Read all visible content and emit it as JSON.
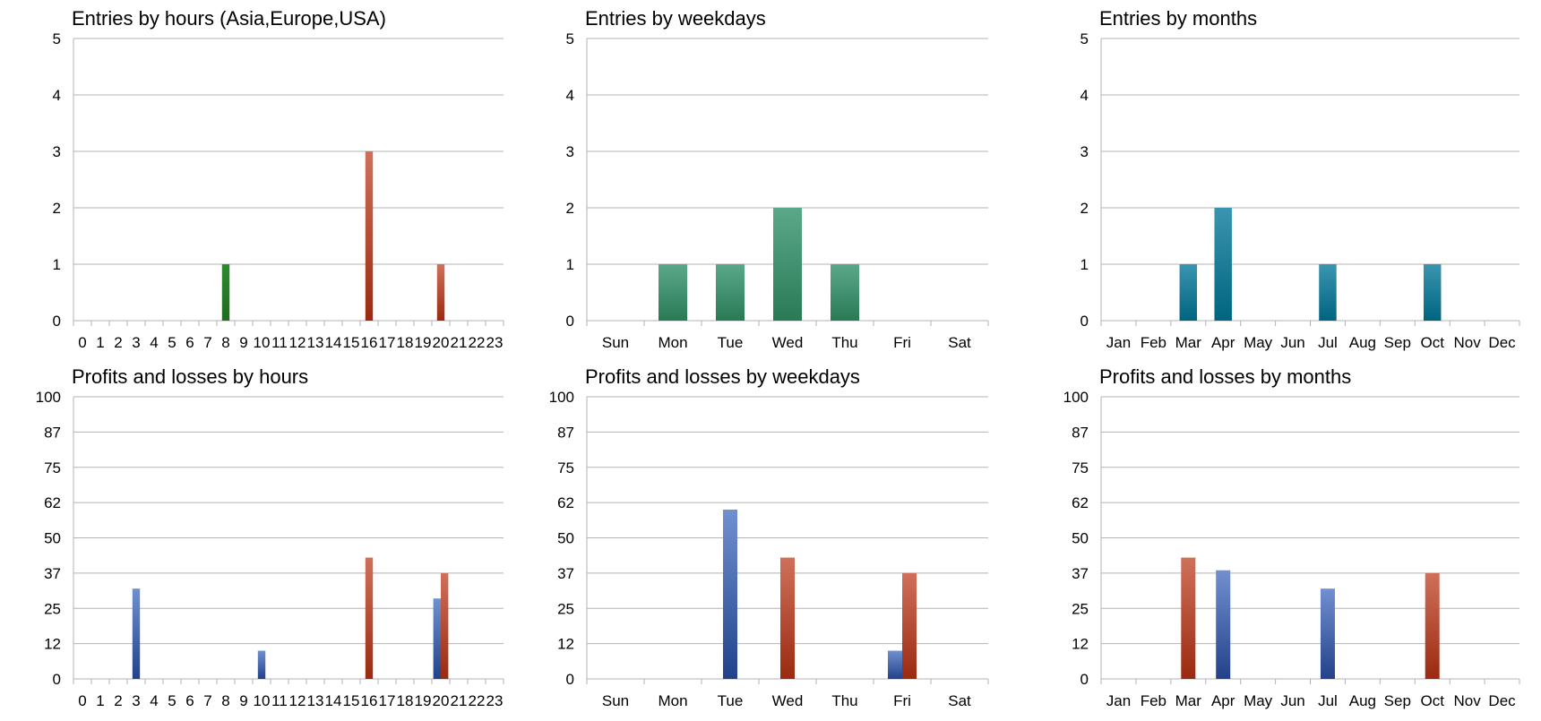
{
  "colors": {
    "green_dark": "#1f6b1f",
    "green_light": "#2e8b2e",
    "teal_dark": "#2a7a56",
    "teal_light": "#5aa888",
    "cyan_dark": "#006480",
    "cyan_light": "#3a95b0",
    "red_dark": "#9a2a10",
    "red_light": "#d0705a",
    "blue_dark": "#21428a",
    "blue_light": "#7090d0"
  },
  "chart_data": [
    {
      "type": "bar",
      "title": "Entries by hours (Asia,Europe,USA)",
      "categories": [
        "0",
        "1",
        "2",
        "3",
        "4",
        "5",
        "6",
        "7",
        "8",
        "9",
        "10",
        "11",
        "12",
        "13",
        "14",
        "15",
        "16",
        "17",
        "18",
        "19",
        "20",
        "21",
        "22",
        "23"
      ],
      "yticks": [
        "0",
        "1",
        "2",
        "3",
        "4",
        "5"
      ],
      "ylim": [
        0,
        5
      ],
      "series": [
        {
          "values": [
            0,
            0,
            0,
            0,
            0,
            0,
            0,
            0,
            1,
            0,
            0,
            0,
            0,
            0,
            0,
            0,
            0,
            0,
            0,
            0,
            0,
            0,
            0,
            0
          ],
          "color": "green"
        },
        {
          "values": [
            0,
            0,
            0,
            0,
            0,
            0,
            0,
            0,
            0,
            0,
            0,
            0,
            0,
            0,
            0,
            0,
            3,
            0,
            0,
            0,
            1,
            0,
            0,
            0
          ],
          "color": "red"
        }
      ]
    },
    {
      "type": "bar",
      "title": "Entries by weekdays",
      "categories": [
        "Sun",
        "Mon",
        "Tue",
        "Wed",
        "Thu",
        "Fri",
        "Sat"
      ],
      "yticks": [
        "0",
        "1",
        "2",
        "3",
        "4",
        "5"
      ],
      "ylim": [
        0,
        5
      ],
      "series": [
        {
          "values": [
            0,
            1,
            1,
            2,
            1,
            0,
            0
          ],
          "color": "teal"
        }
      ]
    },
    {
      "type": "bar",
      "title": "Entries by months",
      "categories": [
        "Jan",
        "Feb",
        "Mar",
        "Apr",
        "May",
        "Jun",
        "Jul",
        "Aug",
        "Sep",
        "Oct",
        "Nov",
        "Dec"
      ],
      "yticks": [
        "0",
        "1",
        "2",
        "3",
        "4",
        "5"
      ],
      "ylim": [
        0,
        5
      ],
      "series": [
        {
          "values": [
            0,
            0,
            1,
            2,
            0,
            0,
            1,
            0,
            0,
            1,
            0,
            0
          ],
          "color": "cyan"
        }
      ]
    },
    {
      "type": "bar",
      "title": "Profits and losses by hours",
      "categories": [
        "0",
        "1",
        "2",
        "3",
        "4",
        "5",
        "6",
        "7",
        "8",
        "9",
        "10",
        "11",
        "12",
        "13",
        "14",
        "15",
        "16",
        "17",
        "18",
        "19",
        "20",
        "21",
        "22",
        "23"
      ],
      "yticks": [
        "0",
        "12",
        "25",
        "37",
        "50",
        "62",
        "75",
        "87",
        "100"
      ],
      "ylim": [
        0,
        100
      ],
      "series": [
        {
          "values": [
            0,
            0,
            0,
            32,
            0,
            0,
            0,
            0,
            0,
            0,
            10,
            0,
            0,
            0,
            0,
            0,
            0,
            0,
            0,
            0,
            28.5,
            0,
            0,
            0
          ],
          "color": "blue"
        },
        {
          "values": [
            0,
            0,
            0,
            0,
            0,
            0,
            0,
            0,
            0,
            0,
            0,
            0,
            0,
            0,
            0,
            0,
            43,
            0,
            0,
            0,
            37.5,
            0,
            0,
            0
          ],
          "color": "red"
        }
      ]
    },
    {
      "type": "bar",
      "title": "Profits and losses by weekdays",
      "categories": [
        "Sun",
        "Mon",
        "Tue",
        "Wed",
        "Thu",
        "Fri",
        "Sat"
      ],
      "yticks": [
        "0",
        "12",
        "25",
        "37",
        "50",
        "62",
        "75",
        "87",
        "100"
      ],
      "ylim": [
        0,
        100
      ],
      "series": [
        {
          "values": [
            0,
            0,
            60,
            0,
            0,
            10,
            0
          ],
          "color": "blue"
        },
        {
          "values": [
            0,
            0,
            0,
            43,
            0,
            37.5,
            0
          ],
          "color": "red"
        }
      ]
    },
    {
      "type": "bar",
      "title": "Profits and losses by months",
      "categories": [
        "Jan",
        "Feb",
        "Mar",
        "Apr",
        "May",
        "Jun",
        "Jul",
        "Aug",
        "Sep",
        "Oct",
        "Nov",
        "Dec"
      ],
      "yticks": [
        "0",
        "12",
        "25",
        "37",
        "50",
        "62",
        "75",
        "87",
        "100"
      ],
      "ylim": [
        0,
        100
      ],
      "series": [
        {
          "values": [
            0,
            0,
            0,
            38.5,
            0,
            0,
            32,
            0,
            0,
            0,
            0,
            0
          ],
          "color": "blue"
        },
        {
          "values": [
            0,
            0,
            43,
            0,
            0,
            0,
            0,
            0,
            0,
            37.5,
            0,
            0
          ],
          "color": "red"
        }
      ]
    }
  ]
}
